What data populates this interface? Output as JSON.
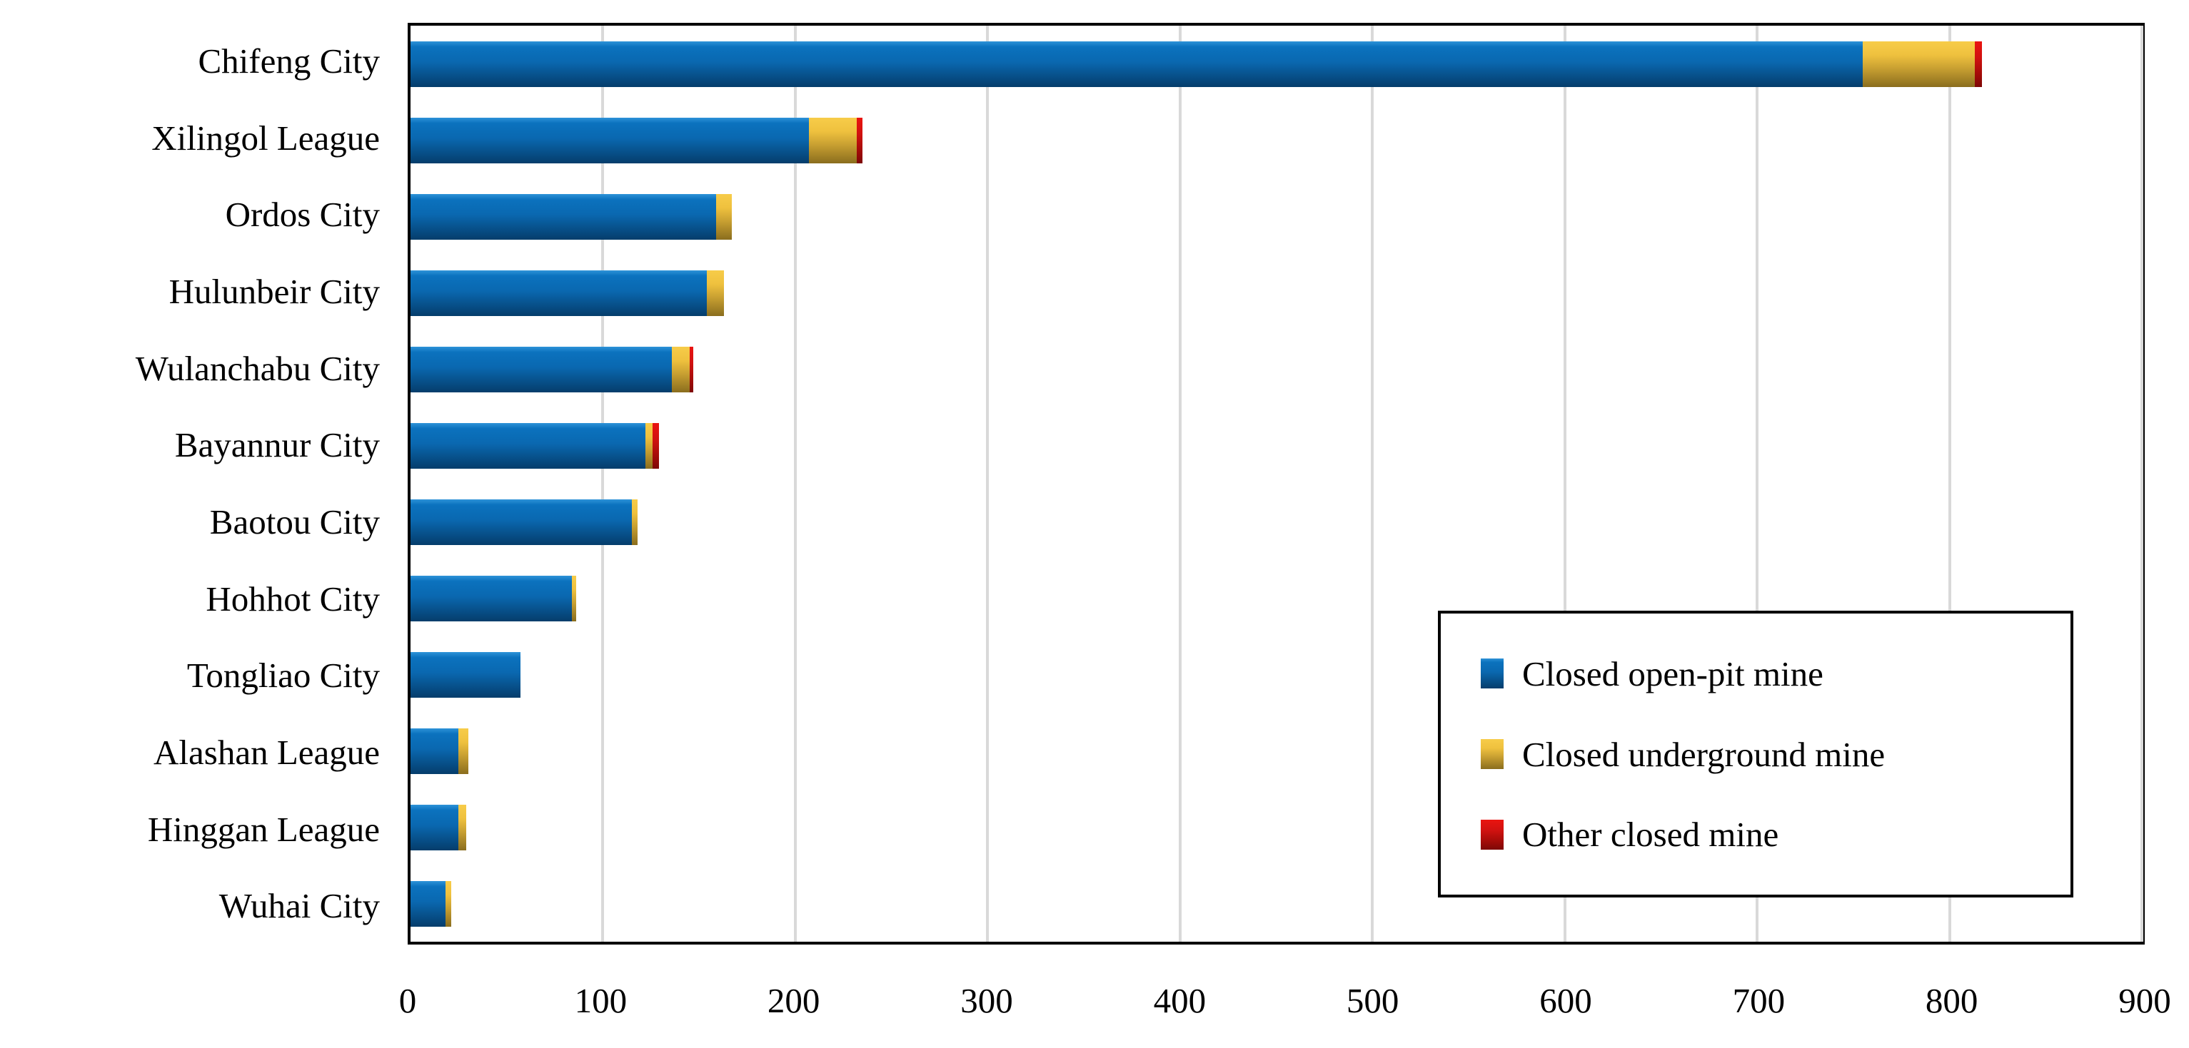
{
  "chart_data": {
    "type": "bar",
    "orientation": "horizontal",
    "stacked": true,
    "title": "",
    "xlabel": "",
    "ylabel": "",
    "xlim": [
      0,
      900
    ],
    "xticks": [
      0,
      100,
      200,
      300,
      400,
      500,
      600,
      700,
      800,
      900
    ],
    "grid": "vertical-major",
    "legend_position": "inside-lower-right",
    "categories": [
      "Chifeng City",
      "Xilingol League",
      "Ordos City",
      "Hulunbeir City",
      "Wulanchabu City",
      "Bayannur City",
      "Baotou City",
      "Hohhot City",
      "Tongliao City",
      "Alashan League",
      "Hinggan League",
      "Wuhai City"
    ],
    "series": [
      {
        "name": "Closed open-pit mine",
        "color": "#0b72be",
        "values": [
          755,
          207,
          159,
          154,
          136,
          122,
          115,
          84,
          57,
          25,
          25,
          18
        ]
      },
      {
        "name": "Closed underground mine",
        "color": "#efc13e",
        "values": [
          58,
          25,
          8,
          9,
          9,
          4,
          3,
          2,
          0,
          5,
          4,
          3
        ]
      },
      {
        "name": "Other closed mine",
        "color": "#d11210",
        "values": [
          4,
          3,
          0,
          0,
          2,
          3,
          0,
          0,
          0,
          0,
          0,
          0
        ]
      }
    ],
    "totals": [
      817,
      235,
      167,
      163,
      147,
      129,
      118,
      86,
      57,
      30,
      29,
      21
    ]
  },
  "style": {
    "gridline_color": "#d9d9d9",
    "frame_color": "#000000",
    "background_color": "#ffffff"
  }
}
